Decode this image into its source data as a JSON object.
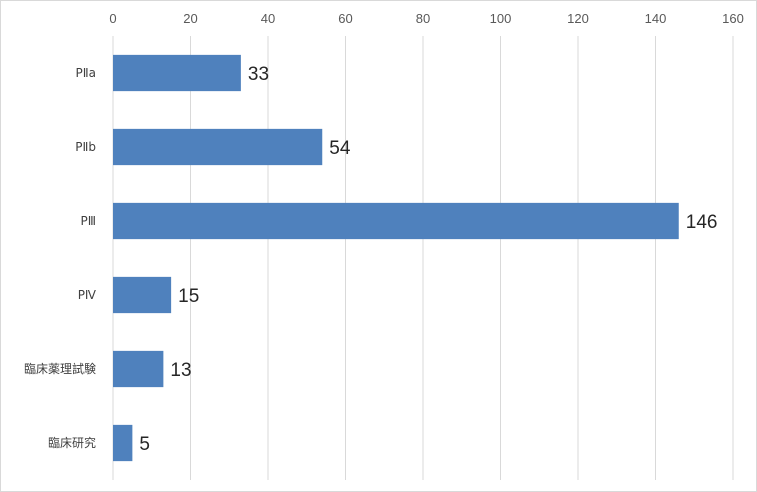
{
  "chart_data": {
    "type": "bar",
    "orientation": "horizontal",
    "title": "",
    "xlabel": "",
    "ylabel": "",
    "categories": [
      "PⅡa",
      "PⅡb",
      "PⅢ",
      "PⅣ",
      "臨床薬理試験",
      "臨床研究"
    ],
    "values": [
      33,
      54,
      146,
      15,
      13,
      5
    ],
    "xlim": [
      0,
      160
    ],
    "ticks": [
      0,
      20,
      40,
      60,
      80,
      100,
      120,
      140,
      160
    ],
    "tick_labels": [
      "0",
      "20",
      "40",
      "60",
      "80",
      "100",
      "120",
      "140",
      "160"
    ],
    "value_labels": [
      "33",
      "54",
      "146",
      "15",
      "13",
      "5"
    ],
    "x_axis_position": "top",
    "grid": true,
    "legend": "none",
    "bar_color": "#4f81bd",
    "grid_color": "#d9d9d9"
  }
}
